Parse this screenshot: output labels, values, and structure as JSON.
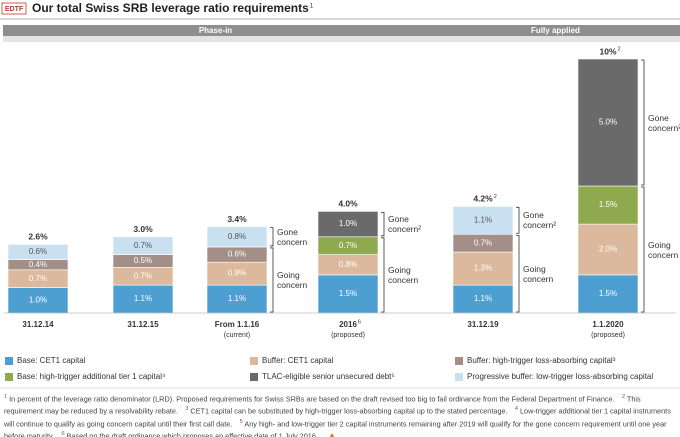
{
  "chart_data": {
    "type": "stacked_bar",
    "tag": "EDTF",
    "title": "Our total Swiss SRB leverage ratio requirements",
    "title_note": "1",
    "phases": [
      {
        "label": "Phase-in",
        "first": 0,
        "last": 3
      },
      {
        "label": "Fully applied",
        "first": 4,
        "last": 5
      }
    ],
    "categories": [
      "31.12.14",
      "31.12.15",
      "From 1.1.16",
      "2016",
      "31.12.19",
      "1.1.2020"
    ],
    "category_notes": [
      null,
      null,
      null,
      "6",
      null,
      null
    ],
    "category_sublabels": [
      null,
      null,
      "(current)",
      "(proposed)",
      null,
      "(proposed)"
    ],
    "ylim": [
      0,
      10
    ],
    "series": [
      {
        "name": "Base: CET1 capital",
        "color": "#4e9fd1",
        "values": [
          1.0,
          1.1,
          1.1,
          1.5,
          1.1,
          1.5
        ],
        "value_labels": [
          "1.0%",
          "1.1%",
          "1.1%",
          "1.5%",
          "1.1%",
          "1.5%"
        ]
      },
      {
        "name": "Buffer: CET1 capital",
        "color": "#dcb89c",
        "values": [
          0.7,
          0.7,
          0.9,
          0.8,
          1.3,
          2.0
        ],
        "value_labels": [
          "0.7%",
          "0.7%",
          "0.9%",
          "0.8%",
          "1.3%",
          "2.0%"
        ]
      },
      {
        "name": "Buffer: high-trigger loss-absorbing capital³",
        "color": "#a38f87",
        "values": [
          0.4,
          0.5,
          0.6,
          null,
          0.7,
          null
        ],
        "value_labels": [
          "0.4%",
          "0.5%",
          "0.6%",
          null,
          "0.7%",
          null
        ]
      },
      {
        "name": "Base: high-trigger additional tier 1 capital⁴",
        "color": "#8fa94f",
        "values": [
          null,
          null,
          null,
          0.7,
          null,
          1.5
        ],
        "value_labels": [
          null,
          null,
          null,
          "0.7%",
          null,
          "1.5%"
        ]
      },
      {
        "name": "TLAC-eligible senior unsecured debt⁵",
        "color": "#6a6a6a",
        "values": [
          null,
          null,
          null,
          1.0,
          null,
          5.0
        ],
        "value_labels": [
          null,
          null,
          null,
          "1.0%",
          null,
          "5.0%"
        ]
      },
      {
        "name": "Progressive buffer: low-trigger loss-absorbing capital",
        "color": "#c9e0f1",
        "values": [
          0.6,
          0.7,
          0.8,
          null,
          1.1,
          null
        ],
        "value_labels": [
          "0.6%",
          "0.7%",
          "0.8%",
          null,
          "1.1%",
          null
        ]
      }
    ],
    "totals": [
      2.6,
      3.0,
      3.4,
      4.0,
      4.2,
      10
    ],
    "total_labels": [
      "2.6%",
      "3.0%",
      "3.4%",
      "4.0%",
      "4.2%",
      "10%"
    ],
    "total_notes": [
      null,
      null,
      null,
      null,
      "2",
      "2"
    ],
    "brackets": [
      {
        "bar": 2,
        "gone": "Gone concern",
        "going": "Going concern"
      },
      {
        "bar": 3,
        "gone": "Gone concern²",
        "going": "Going concern"
      },
      {
        "bar": 4,
        "gone": "Gone concern²",
        "going": "Going concern"
      },
      {
        "bar": 5,
        "gone": "Gone concern²",
        "going": "Going concern"
      }
    ],
    "footnotes": [
      {
        "mark": "1",
        "text": "In percent of the leverage ratio denominator (LRD). Proposed requirements for Swiss SRBs are based on the draft revised too big to fail ordinance from the Federal Department of Finance."
      },
      {
        "mark": "2",
        "text": "This requirement may be reduced by a resolvability rebate."
      },
      {
        "mark": "3",
        "text": "CET1 capital can be substituted by high-trigger loss-absorbing capital up to the stated percentage."
      },
      {
        "mark": "4",
        "text": "Low-trigger additional tier 1 capital instruments will continue to qualify as going concern capital until their first call date."
      },
      {
        "mark": "5",
        "text": "Any high- and low-trigger tier 2 capital instruments remaining after 2019 will qualify for the gone concern requirement until one year before maturity."
      },
      {
        "mark": "6",
        "text": "Based on the draft ordinance which proposes an effective date of 1 July 2016."
      }
    ]
  }
}
